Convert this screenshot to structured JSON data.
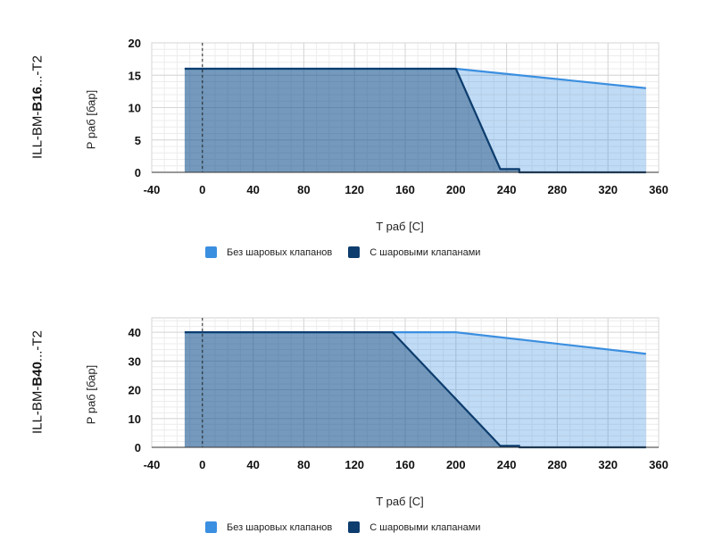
{
  "chart_data": [
    {
      "type": "area",
      "title_prefix": "ILL-BM-",
      "title_bold": "B16",
      "title_suffix": "...-T2",
      "xlabel": "T раб [C]",
      "ylabel": "P раб [бар]",
      "xlim": [
        -40,
        360
      ],
      "ylim": [
        0,
        20
      ],
      "xticks": [
        -40,
        0,
        40,
        80,
        120,
        160,
        200,
        240,
        280,
        320,
        360
      ],
      "yticks": [
        0,
        5,
        10,
        15,
        20
      ],
      "grid": true,
      "legend_position": "bottom",
      "series": [
        {
          "name": "Без шаровых клапанов",
          "color": "#3b8fe0",
          "x": [
            -14,
            200,
            350
          ],
          "y": [
            16,
            16,
            13
          ]
        },
        {
          "name": "С шаровыми клапанами",
          "color": "#0d3d6e",
          "x": [
            -14,
            200,
            235,
            250,
            250,
            350
          ],
          "y": [
            16,
            16,
            0.5,
            0.5,
            0,
            0
          ]
        }
      ]
    },
    {
      "type": "area",
      "title_prefix": "ILL-BM-",
      "title_bold": "B40",
      "title_suffix": "...-T2",
      "xlabel": "T раб [C]",
      "ylabel": "P раб [бар]",
      "xlim": [
        -40,
        360
      ],
      "ylim": [
        0,
        45
      ],
      "xticks": [
        -40,
        0,
        40,
        80,
        120,
        160,
        200,
        240,
        280,
        320,
        360
      ],
      "yticks": [
        0,
        10,
        20,
        30,
        40
      ],
      "grid": true,
      "legend_position": "bottom",
      "series": [
        {
          "name": "Без шаровых клапанов",
          "color": "#3b8fe0",
          "x": [
            -14,
            200,
            350
          ],
          "y": [
            40,
            40,
            32.5
          ]
        },
        {
          "name": "С шаровыми клапанами",
          "color": "#0d3d6e",
          "x": [
            -14,
            150,
            235,
            250,
            250,
            350
          ],
          "y": [
            40,
            40,
            0.5,
            0.5,
            0,
            0
          ]
        }
      ]
    }
  ]
}
